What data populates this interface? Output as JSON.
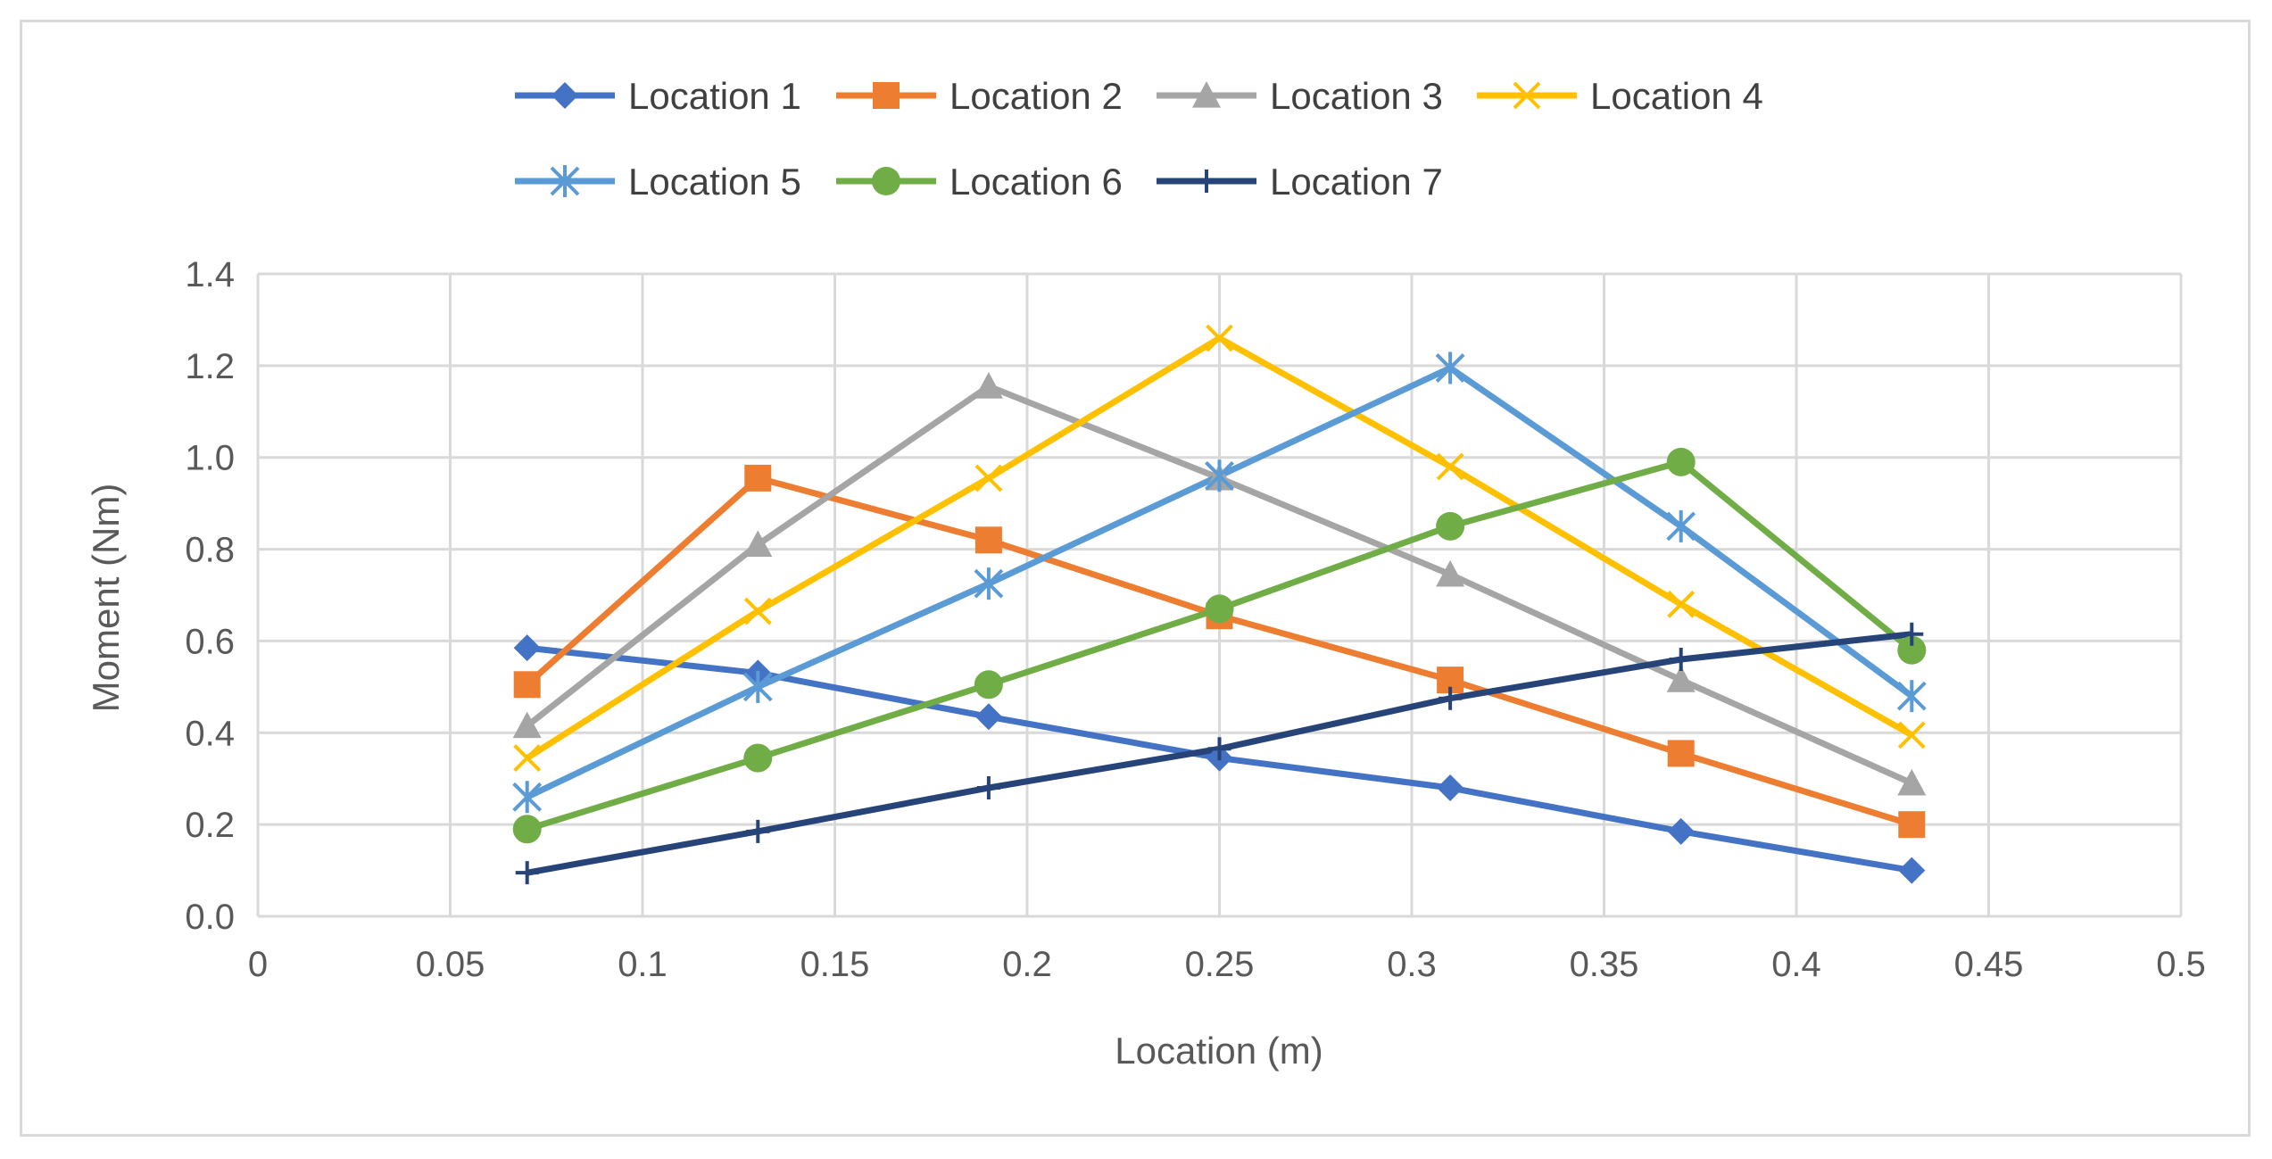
{
  "chart_data": {
    "type": "line",
    "title": "",
    "xlabel": "Location (m)",
    "ylabel": "Moment (Nm)",
    "xlim": [
      0,
      0.5
    ],
    "ylim": [
      0,
      1.4
    ],
    "xticks": [
      0,
      0.05,
      0.1,
      0.15,
      0.2,
      0.25,
      0.3,
      0.35,
      0.4,
      0.45,
      0.5
    ],
    "xtick_labels": [
      "0",
      "0.05",
      "0.1",
      "0.15",
      "0.2",
      "0.25",
      "0.3",
      "0.35",
      "0.4",
      "0.45",
      "0.5"
    ],
    "yticks": [
      0,
      0.2,
      0.4,
      0.6,
      0.8,
      1.0,
      1.2,
      1.4
    ],
    "ytick_labels": [
      "0.0",
      "0.2",
      "0.4",
      "0.6",
      "0.8",
      "1.0",
      "1.2",
      "1.4"
    ],
    "grid": true,
    "legend_position": "top",
    "x": [
      0.07,
      0.13,
      0.19,
      0.25,
      0.31,
      0.37,
      0.43
    ],
    "series": [
      {
        "name": "Location 1",
        "color": "#4472C4",
        "marker": "diamond",
        "values": [
          0.585,
          0.53,
          0.435,
          0.345,
          0.28,
          0.185,
          0.1
        ]
      },
      {
        "name": "Location 2",
        "color": "#ED7D31",
        "marker": "square",
        "values": [
          0.505,
          0.955,
          0.82,
          0.655,
          0.515,
          0.355,
          0.2
        ]
      },
      {
        "name": "Location 3",
        "color": "#A5A5A5",
        "marker": "triangle",
        "values": [
          0.415,
          0.81,
          1.155,
          0.955,
          0.745,
          0.515,
          0.29
        ]
      },
      {
        "name": "Location 4",
        "color": "#FFC000",
        "marker": "x",
        "values": [
          0.345,
          0.665,
          0.955,
          1.26,
          0.98,
          0.68,
          0.395
        ]
      },
      {
        "name": "Location 5",
        "color": "#5B9BD5",
        "marker": "star",
        "values": [
          0.26,
          0.5,
          0.725,
          0.96,
          1.195,
          0.85,
          0.48
        ]
      },
      {
        "name": "Location 6",
        "color": "#70AD47",
        "marker": "circle",
        "values": [
          0.19,
          0.345,
          0.505,
          0.67,
          0.85,
          0.99,
          0.58
        ]
      },
      {
        "name": "Location 7",
        "color": "#264478",
        "marker": "plus",
        "values": [
          0.095,
          0.185,
          0.28,
          0.365,
          0.475,
          0.56,
          0.615
        ]
      }
    ]
  }
}
